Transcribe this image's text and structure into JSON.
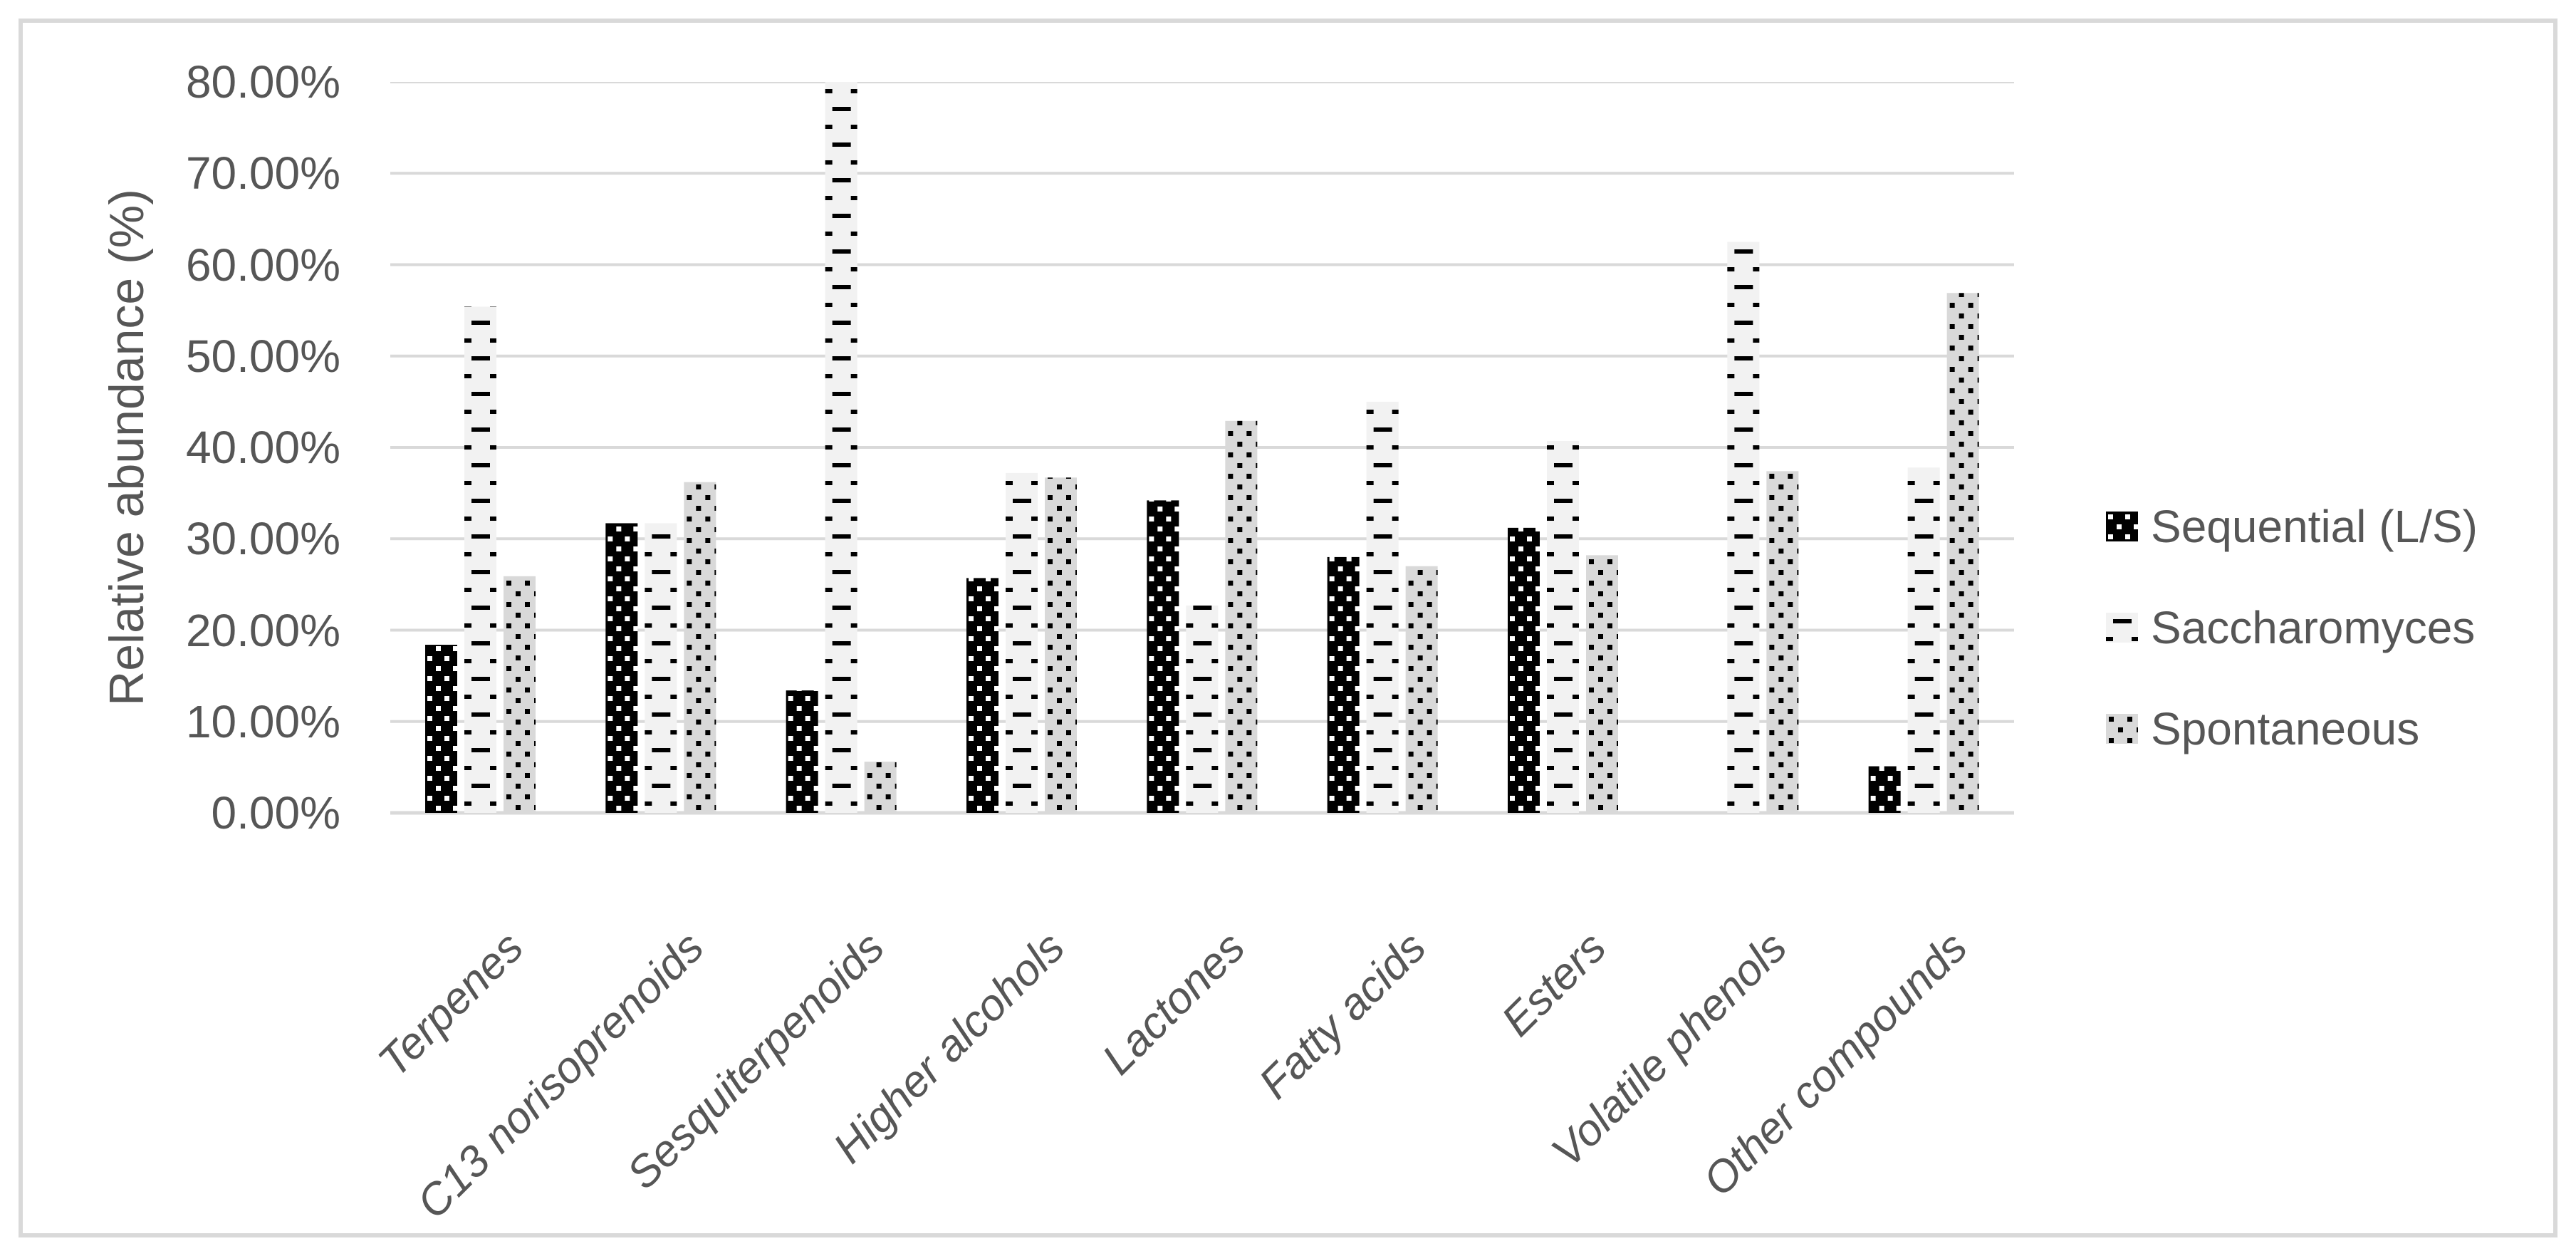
{
  "chart_data": {
    "type": "bar",
    "title": "",
    "ylabel": "Relative abundance (%)",
    "xlabel": "",
    "ylim": [
      0,
      80
    ],
    "y_tick_step": 10,
    "y_ticks": [
      "80.00%",
      "70.00%",
      "60.00%",
      "50.00%",
      "40.00%",
      "30.00%",
      "20.00%",
      "10.00%",
      "0.00%"
    ],
    "grid": true,
    "legend_position": "right",
    "categories": [
      "Terpenes",
      "C13 norisoprenoids",
      "Sesquiterpenoids",
      "Higher alcohols",
      "Lactones",
      "Fatty acids",
      "Esters",
      "Volatile phenols",
      "Other compounds"
    ],
    "series": [
      {
        "name": "Sequential (L/S)",
        "pattern": "white-dots-on-black",
        "fill": "#000000",
        "pattern_color": "#ffffff",
        "values": [
          18.4,
          31.7,
          13.4,
          25.7,
          34.2,
          28.0,
          31.2,
          0,
          5.1
        ]
      },
      {
        "name": "Saccharomyces",
        "pattern": "black-dashes-on-white",
        "fill": "#f2f2f2",
        "pattern_color": "#000000",
        "values": [
          55.4,
          31.7,
          80.2,
          37.2,
          22.7,
          45.0,
          40.7,
          62.5,
          37.8
        ]
      },
      {
        "name": "Spontaneous",
        "pattern": "black-dots-on-gray",
        "fill": "#d9d9d9",
        "pattern_color": "#000000",
        "values": [
          25.9,
          36.2,
          5.6,
          36.7,
          42.9,
          27.0,
          28.2,
          37.4,
          56.9
        ]
      }
    ]
  },
  "colors": {
    "text": "#565656",
    "gridline": "#d9d9d9",
    "axis_line": "#d9d9d9",
    "frame_border": "#d9d9d9",
    "background": "#ffffff"
  }
}
